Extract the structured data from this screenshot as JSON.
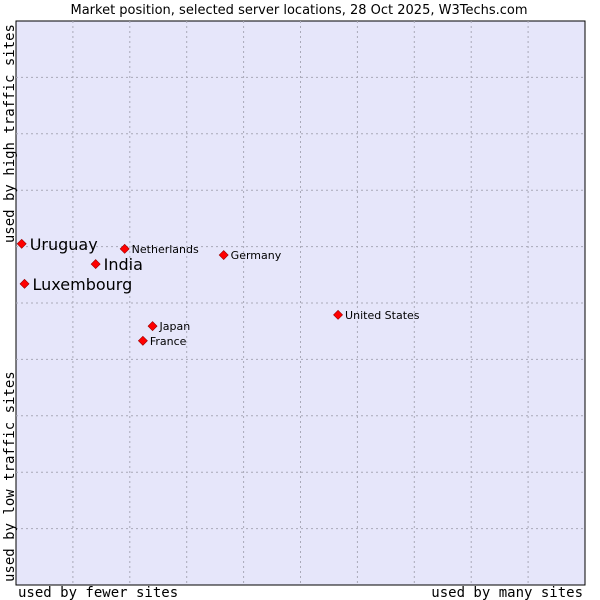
{
  "chart_data": {
    "type": "scatter",
    "title": "Market position, selected server locations, 28 Oct 2025, W3Techs.com",
    "xlabel_left": "used by fewer sites",
    "xlabel_right": "used by many sites",
    "ylabel_bottom": "used by low traffic sites",
    "ylabel_top": "used by high traffic sites",
    "xlim": [
      0,
      100
    ],
    "ylim": [
      0,
      100
    ],
    "grid": true,
    "colors": {
      "plot_bg": "#e6e6fa",
      "grid": "#a9a9b8",
      "marker": "#ff0000",
      "marker_edge": "#990000"
    },
    "points": [
      {
        "name": "Uruguay",
        "x": 1.0,
        "y": 60.5,
        "size": "big"
      },
      {
        "name": "India",
        "x": 14.0,
        "y": 56.9,
        "size": "big"
      },
      {
        "name": "Luxembourg",
        "x": 1.5,
        "y": 53.4,
        "size": "big"
      },
      {
        "name": "Netherlands",
        "x": 19.1,
        "y": 59.6,
        "size": "small"
      },
      {
        "name": "Germany",
        "x": 36.5,
        "y": 58.5,
        "size": "small"
      },
      {
        "name": "United States",
        "x": 56.6,
        "y": 47.9,
        "size": "small"
      },
      {
        "name": "Japan",
        "x": 24.0,
        "y": 45.9,
        "size": "small"
      },
      {
        "name": "France",
        "x": 22.3,
        "y": 43.3,
        "size": "small"
      }
    ]
  }
}
